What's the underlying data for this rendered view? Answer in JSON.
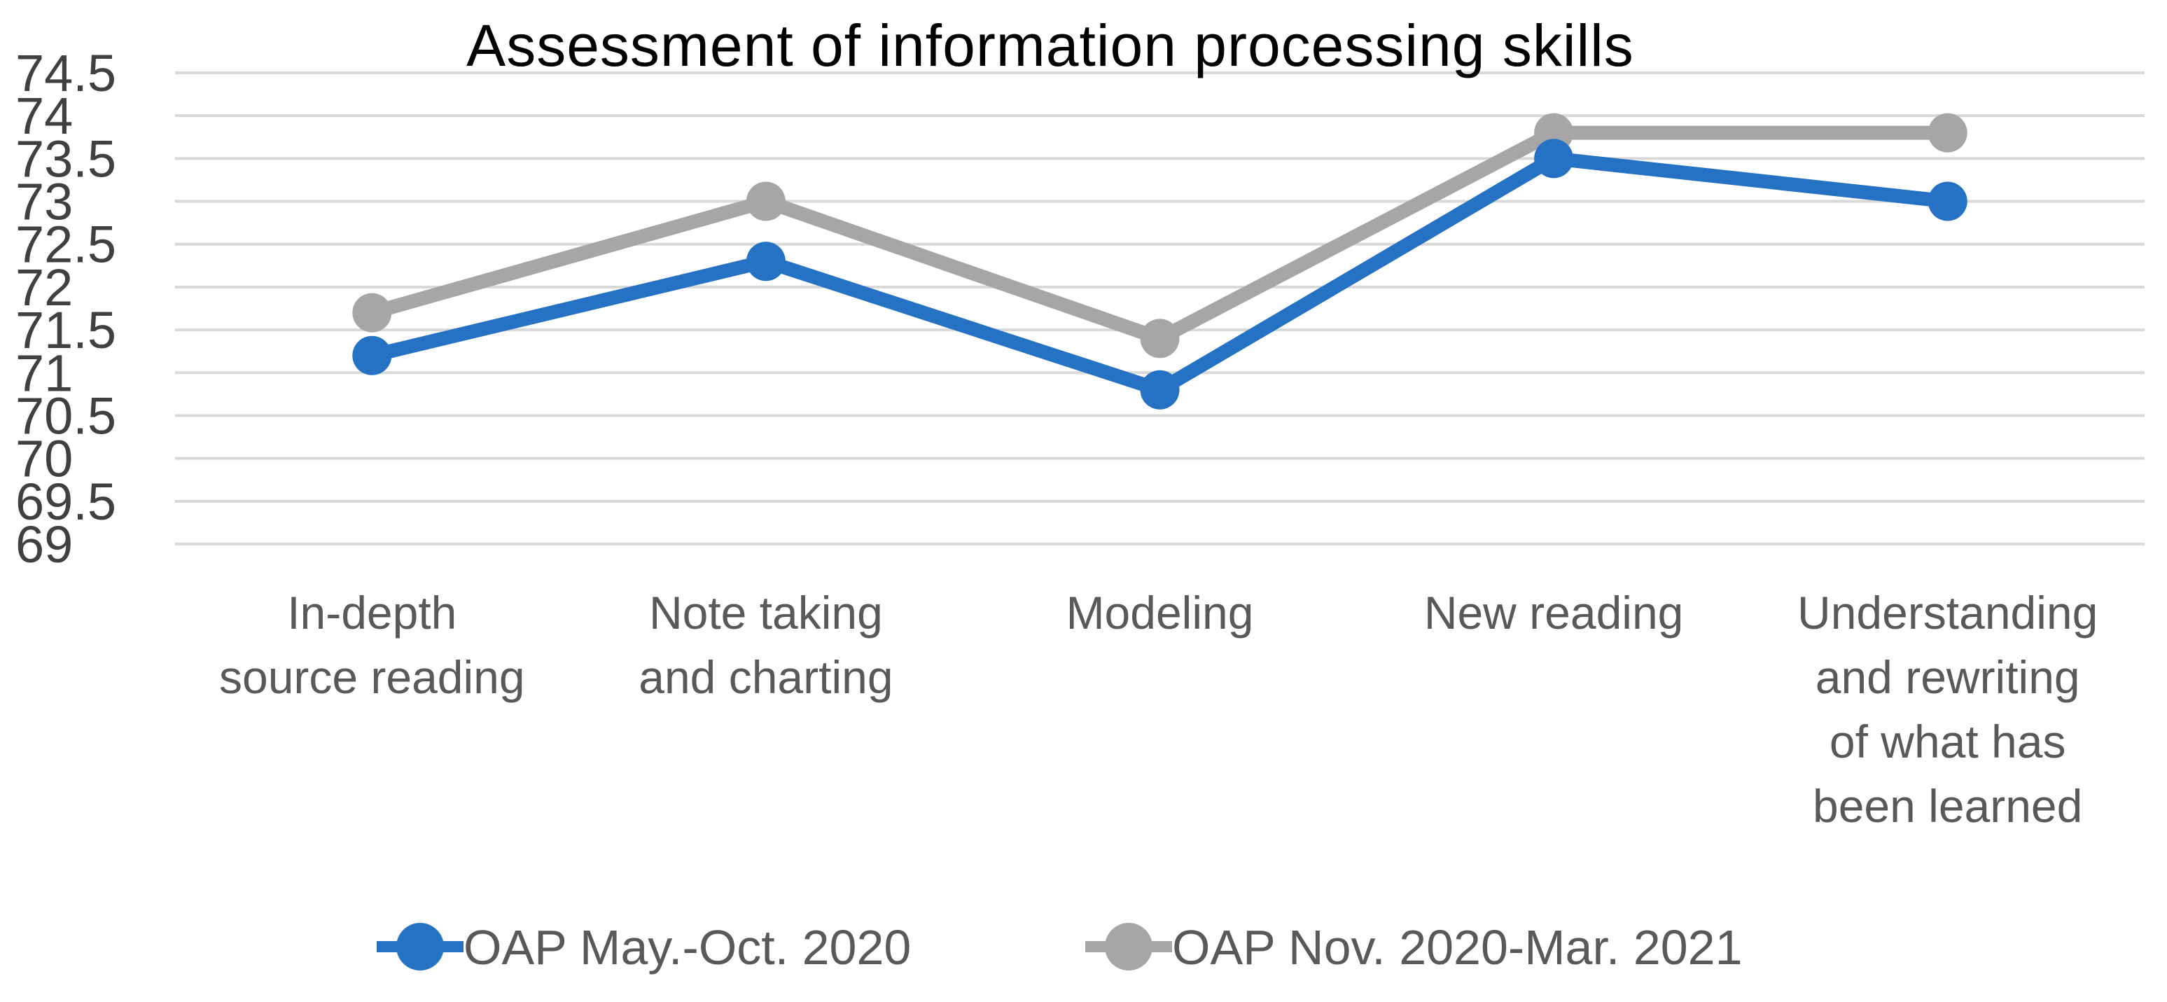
{
  "chart_data": {
    "type": "line",
    "title": "Assessment of information processing skills",
    "categories": [
      "In-depth source reading",
      "Note taking and charting",
      "Modeling",
      "New reading",
      "Understanding and rewriting of what has been learned"
    ],
    "category_lines": [
      [
        "In-depth",
        "source reading"
      ],
      [
        "Note taking",
        "and charting"
      ],
      [
        "Modeling"
      ],
      [
        "New reading"
      ],
      [
        "Understanding",
        "and rewriting",
        "of what has",
        "been learned"
      ]
    ],
    "series": [
      {
        "name": "OAP May.-Oct. 2020",
        "color": "#2571C4",
        "values": [
          71.2,
          72.3,
          70.8,
          73.5,
          73.0
        ]
      },
      {
        "name": "OAP Nov. 2020-Mar. 2021",
        "color": "#A6A6A6",
        "values": [
          71.7,
          73.0,
          71.4,
          73.8,
          73.8
        ]
      }
    ],
    "ylim": [
      69,
      74.5
    ],
    "ytick_labels": [
      "74.5",
      "74",
      "73.5",
      "73",
      "72.5",
      "72",
      "71.5",
      "71",
      "70.5",
      "70",
      "69.5",
      "69"
    ],
    "ytick_values": [
      74.5,
      74,
      73.5,
      73,
      72.5,
      72,
      71.5,
      71,
      70.5,
      70,
      69.5,
      69
    ],
    "xlabel": "",
    "ylabel": "",
    "grid": true,
    "legend_position": "bottom",
    "marker": "circle",
    "colors": {
      "gridline": "#D9D9D9",
      "title_text": "#595959",
      "tick_text": "#404040",
      "category_text": "#595959",
      "legend_text": "#595959",
      "background": "#FFFFFF"
    }
  }
}
